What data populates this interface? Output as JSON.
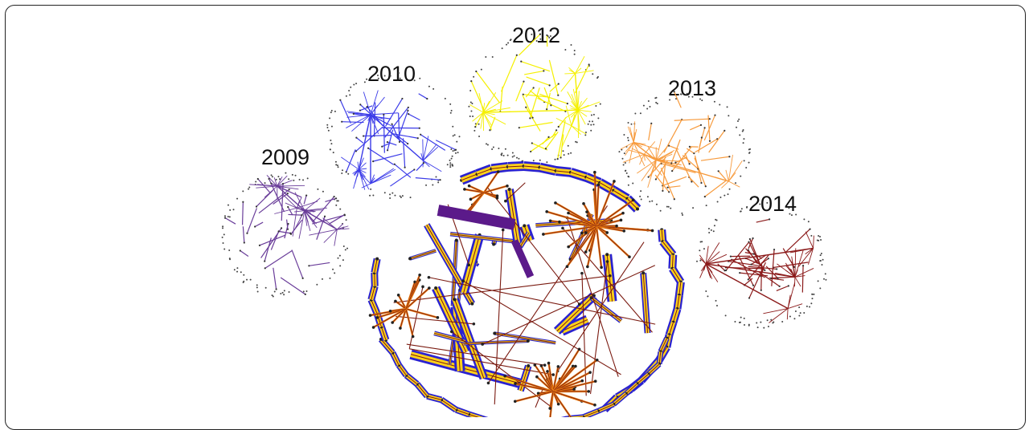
{
  "figure": {
    "panels": [
      {
        "label": "2009",
        "color": "#6a3d9a"
      },
      {
        "label": "2010",
        "color": "#3b3be8"
      },
      {
        "label": "2012",
        "color": "#f5f000"
      },
      {
        "label": "2013",
        "color": "#f79a3c"
      },
      {
        "label": "2014",
        "color": "#8b1a1a"
      }
    ],
    "combined": {
      "colors": [
        "#2a22d0",
        "#ffd21a",
        "#e87a10",
        "#7a1a10",
        "#5b1a8a"
      ]
    }
  }
}
